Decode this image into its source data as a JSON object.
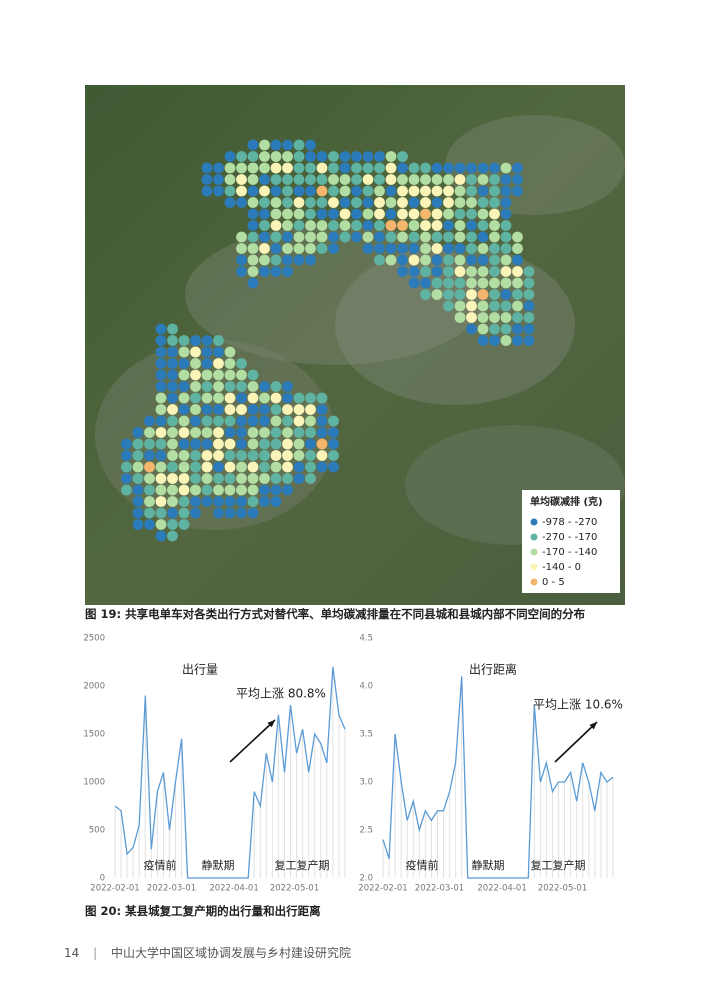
{
  "figure19": {
    "legend": {
      "title": "单均碳减排 (克)",
      "items": [
        {
          "label": "-978 - -270",
          "color": "#2b7bba"
        },
        {
          "label": "-270 - -170",
          "color": "#5fb3a3"
        },
        {
          "label": "-170 - -140",
          "color": "#b2dea3"
        },
        {
          "label": "-140 - 0",
          "color": "#fbf4b8"
        },
        {
          "label": "0 - 5",
          "color": "#f3b66c"
        }
      ]
    },
    "caption": "图 19: 共享电单车对各类出行方式对替代率、单均碳减排量在不同县城和县城内部不同空间的分布"
  },
  "chart_data": [
    {
      "type": "line",
      "title": "出行量",
      "annotations": [
        "平均上涨 80.8%",
        "疫情前",
        "静默期",
        "复工复产期"
      ],
      "color": "#5b9bd5",
      "x": [
        "2022-02-01",
        "2022-02-04",
        "2022-02-07",
        "2022-02-10",
        "2022-02-13",
        "2022-02-16",
        "2022-02-19",
        "2022-02-22",
        "2022-02-25",
        "2022-02-28",
        "2022-03-03",
        "2022-03-06",
        "2022-03-09",
        "2022-03-12",
        "2022-03-15",
        "2022-03-18",
        "2022-03-21",
        "2022-03-24",
        "2022-03-27",
        "2022-03-30",
        "2022-04-02",
        "2022-04-05",
        "2022-04-08",
        "2022-04-11",
        "2022-04-14",
        "2022-04-17",
        "2022-04-20",
        "2022-04-23",
        "2022-04-26",
        "2022-04-29",
        "2022-05-02",
        "2022-05-05",
        "2022-05-08",
        "2022-05-11",
        "2022-05-14",
        "2022-05-17",
        "2022-05-20",
        "2022-05-23",
        "2022-05-26"
      ],
      "values": [
        750,
        700,
        250,
        320,
        550,
        1900,
        300,
        900,
        1100,
        500,
        1000,
        1450,
        0,
        0,
        0,
        0,
        0,
        0,
        0,
        0,
        0,
        0,
        0,
        900,
        750,
        1300,
        1000,
        1700,
        1100,
        1800,
        1300,
        1550,
        1100,
        1500,
        1400,
        1200,
        2200,
        1700,
        1550
      ],
      "ylim": [
        0,
        2500
      ],
      "yticks": [
        0,
        500,
        1000,
        1500,
        2000,
        2500
      ],
      "xticks": [
        "2022-02-01",
        "2022-03-01",
        "2022-04-01",
        "2022-05-01"
      ]
    },
    {
      "type": "line",
      "title": "出行距离",
      "annotations": [
        "平均上涨 10.6%",
        "疫情前",
        "静默期",
        "复工复产期"
      ],
      "color": "#5b9bd5",
      "x": [
        "2022-02-01",
        "2022-02-04",
        "2022-02-07",
        "2022-02-10",
        "2022-02-13",
        "2022-02-16",
        "2022-02-19",
        "2022-02-22",
        "2022-02-25",
        "2022-02-28",
        "2022-03-03",
        "2022-03-06",
        "2022-03-09",
        "2022-03-12",
        "2022-03-15",
        "2022-03-18",
        "2022-03-21",
        "2022-03-24",
        "2022-03-27",
        "2022-03-30",
        "2022-04-02",
        "2022-04-05",
        "2022-04-08",
        "2022-04-11",
        "2022-04-14",
        "2022-04-17",
        "2022-04-20",
        "2022-04-23",
        "2022-04-26",
        "2022-04-29",
        "2022-05-02",
        "2022-05-05",
        "2022-05-08",
        "2022-05-11",
        "2022-05-14",
        "2022-05-17",
        "2022-05-20",
        "2022-05-23",
        "2022-05-26"
      ],
      "values": [
        2.4,
        2.2,
        3.5,
        3.0,
        2.6,
        2.8,
        2.5,
        2.7,
        2.6,
        2.7,
        2.7,
        2.9,
        3.2,
        4.1,
        2.0,
        2.0,
        2.0,
        2.0,
        2.0,
        2.0,
        2.0,
        2.0,
        2.0,
        2.0,
        2.0,
        3.8,
        3.0,
        3.2,
        2.9,
        3.0,
        3.0,
        3.1,
        2.8,
        3.2,
        3.0,
        2.7,
        3.1,
        3.0,
        3.05
      ],
      "ylim": [
        2,
        4.5
      ],
      "yticks": [
        {
          "value": 2,
          "label": "2.0"
        },
        2.5,
        {
          "value": 3,
          "label": "3.0"
        },
        3.5,
        {
          "value": 4,
          "label": "4.0"
        },
        4.5
      ],
      "xticks": [
        "2022-02-01",
        "2022-03-01",
        "2022-04-01",
        "2022-05-01"
      ]
    }
  ],
  "figure20": {
    "caption": "图 20: 某县城复工复产期的出行量和出行距离"
  },
  "footer": {
    "page": "14",
    "text": "中山大学中国区域协调发展与乡村建设研究院"
  }
}
